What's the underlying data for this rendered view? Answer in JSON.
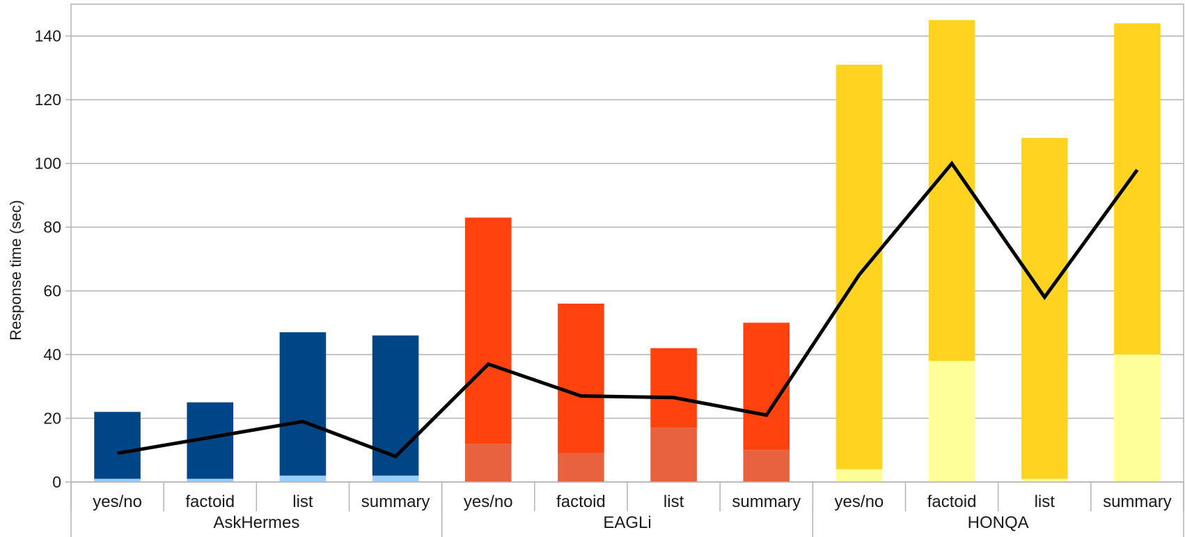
{
  "chart_data": {
    "type": "bar",
    "stacked": true,
    "title": "",
    "ylabel": "Response time (sec)",
    "ylim": [
      0,
      150
    ],
    "yticks": [
      0,
      20,
      40,
      60,
      80,
      100,
      120,
      140
    ],
    "grid": true,
    "groups": [
      {
        "name": "AskHermes",
        "colors": {
          "lower": "#99ccff",
          "upper": "#004586"
        },
        "categories": [
          "yes/no",
          "factoid",
          "list",
          "summary"
        ],
        "lower": [
          1,
          1,
          2,
          2
        ],
        "upper": [
          21,
          24,
          45,
          44
        ],
        "line": [
          9,
          14,
          19,
          8
        ]
      },
      {
        "name": "EAGLi",
        "colors": {
          "lower": "#e8623f",
          "upper": "#ff420e"
        },
        "categories": [
          "yes/no",
          "factoid",
          "list",
          "summary"
        ],
        "lower": [
          12,
          9,
          17,
          10
        ],
        "upper": [
          71,
          47,
          25,
          40
        ],
        "line": [
          37,
          27,
          26.5,
          21
        ]
      },
      {
        "name": "HONQA",
        "colors": {
          "lower": "#ffff99",
          "upper": "#ffd320"
        },
        "categories": [
          "yes/no",
          "factoid",
          "list",
          "summary"
        ],
        "lower": [
          4,
          38,
          1,
          40
        ],
        "upper": [
          127,
          107,
          107,
          104
        ],
        "line": [
          65,
          100,
          58,
          98
        ]
      }
    ],
    "line_color": "#000000"
  }
}
